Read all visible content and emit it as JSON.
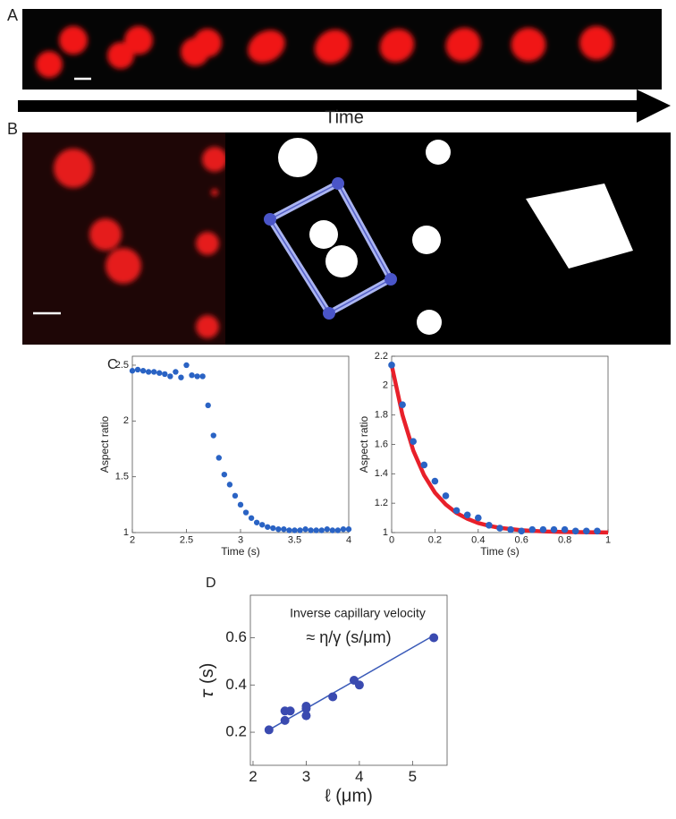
{
  "panels": [
    "A",
    "B",
    "C",
    "D"
  ],
  "time_label": "Time",
  "chart_data": [
    {
      "type": "scatter",
      "xlabel": "Time (s)",
      "ylabel": "Aspect ratio",
      "xlim": [
        2,
        4
      ],
      "ylim": [
        1,
        2.58
      ],
      "xticks": [
        2,
        2.5,
        3,
        3.5,
        4
      ],
      "yticks": [
        1,
        1.5,
        2,
        2.5
      ],
      "series": [
        {
          "style": "markers",
          "color": "#2a63c4",
          "x": [
            2.0,
            2.05,
            2.1,
            2.15,
            2.2,
            2.25,
            2.3,
            2.35,
            2.4,
            2.45,
            2.5,
            2.55,
            2.6,
            2.65,
            2.7,
            2.75,
            2.8,
            2.85,
            2.9,
            2.95,
            3.0,
            3.05,
            3.1,
            3.15,
            3.2,
            3.25,
            3.3,
            3.35,
            3.4,
            3.45,
            3.5,
            3.55,
            3.6,
            3.65,
            3.7,
            3.75,
            3.8,
            3.85,
            3.9,
            3.95,
            4.0
          ],
          "values": [
            2.45,
            2.46,
            2.45,
            2.44,
            2.44,
            2.43,
            2.42,
            2.4,
            2.44,
            2.39,
            2.5,
            2.41,
            2.4,
            2.4,
            2.14,
            1.87,
            1.67,
            1.52,
            1.43,
            1.33,
            1.25,
            1.18,
            1.13,
            1.09,
            1.07,
            1.05,
            1.04,
            1.03,
            1.03,
            1.02,
            1.02,
            1.02,
            1.03,
            1.02,
            1.02,
            1.02,
            1.03,
            1.02,
            1.02,
            1.03,
            1.03
          ]
        }
      ]
    },
    {
      "type": "scatter",
      "xlabel": "Time (s)",
      "ylabel": "Aspect ratio",
      "xlim": [
        0,
        1
      ],
      "ylim": [
        1,
        2.2
      ],
      "xticks": [
        0,
        0.2,
        0.4,
        0.6,
        0.8,
        1
      ],
      "yticks": [
        1,
        1.2,
        1.4,
        1.6,
        1.8,
        2,
        2.2
      ],
      "series": [
        {
          "style": "line",
          "color": "#e8202a",
          "x": [
            0,
            0.05,
            0.1,
            0.15,
            0.2,
            0.25,
            0.3,
            0.35,
            0.4,
            0.45,
            0.5,
            0.6,
            0.7,
            0.8,
            0.9,
            1.0
          ],
          "values": [
            2.14,
            1.8,
            1.558,
            1.39,
            1.272,
            1.191,
            1.133,
            1.094,
            1.065,
            1.046,
            1.032,
            1.016,
            1.008,
            1.004,
            1.002,
            1.001
          ]
        },
        {
          "style": "markers",
          "color": "#2a63c4",
          "x": [
            0,
            0.05,
            0.1,
            0.15,
            0.2,
            0.25,
            0.3,
            0.35,
            0.4,
            0.45,
            0.5,
            0.55,
            0.6,
            0.65,
            0.7,
            0.75,
            0.8,
            0.85,
            0.9,
            0.95
          ],
          "values": [
            2.14,
            1.87,
            1.62,
            1.46,
            1.35,
            1.25,
            1.15,
            1.12,
            1.1,
            1.05,
            1.03,
            1.02,
            1.01,
            1.02,
            1.02,
            1.02,
            1.02,
            1.01,
            1.01,
            1.01
          ]
        }
      ]
    },
    {
      "type": "scatter",
      "xlabel": "ℓ (μm)",
      "ylabel": "𝜏 (s)",
      "xlim": [
        1.95,
        5.65
      ],
      "ylim": [
        0.06,
        0.78
      ],
      "xticks": [
        2,
        3,
        4,
        5
      ],
      "yticks": [
        0.2,
        0.4,
        0.6
      ],
      "annotations": [
        "Inverse capillary velocity",
        "≈ η/γ (s/μm)"
      ],
      "series": [
        {
          "style": "line",
          "color": "#3a5ab8",
          "x": [
            2.3,
            5.4
          ],
          "values": [
            0.21,
            0.61
          ]
        },
        {
          "style": "markers",
          "color": "#3a4ab0",
          "x": [
            2.3,
            2.6,
            2.7,
            2.6,
            3.0,
            3.0,
            3.0,
            3.5,
            3.9,
            4.0,
            5.4
          ],
          "values": [
            0.21,
            0.29,
            0.29,
            0.25,
            0.31,
            0.27,
            0.3,
            0.35,
            0.42,
            0.4,
            0.6
          ]
        }
      ]
    }
  ]
}
